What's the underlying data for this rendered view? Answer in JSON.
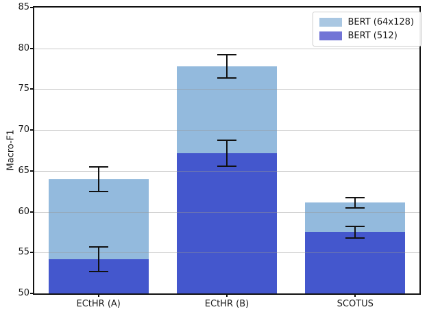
{
  "chart_data": {
    "type": "bar",
    "bar_style": "overlaid",
    "title": "",
    "categories": [
      "ECtHR (A)",
      "ECtHR (B)",
      "SCOTUS"
    ],
    "series": [
      {
        "name": "BERT (64x128)",
        "values": [
          64.0,
          77.8,
          61.1
        ],
        "errors": [
          1.5,
          1.4,
          0.65
        ],
        "bar_color": "#93badd",
        "legend_color": "#a9c7e2"
      },
      {
        "name": "BERT (512)",
        "values": [
          54.2,
          67.2,
          57.5
        ],
        "errors": [
          1.5,
          1.6,
          0.7
        ],
        "bar_color": "#4457cd",
        "legend_color": "#7274d6"
      }
    ],
    "xlabel": "",
    "ylabel": "Macro-F1",
    "ylim": [
      50,
      85
    ],
    "yticks": [
      50,
      55,
      60,
      65,
      70,
      75,
      80,
      85
    ],
    "grid": true,
    "legend_position": "upper right",
    "error_color": "#111111",
    "axes_background": "#ffffff"
  }
}
